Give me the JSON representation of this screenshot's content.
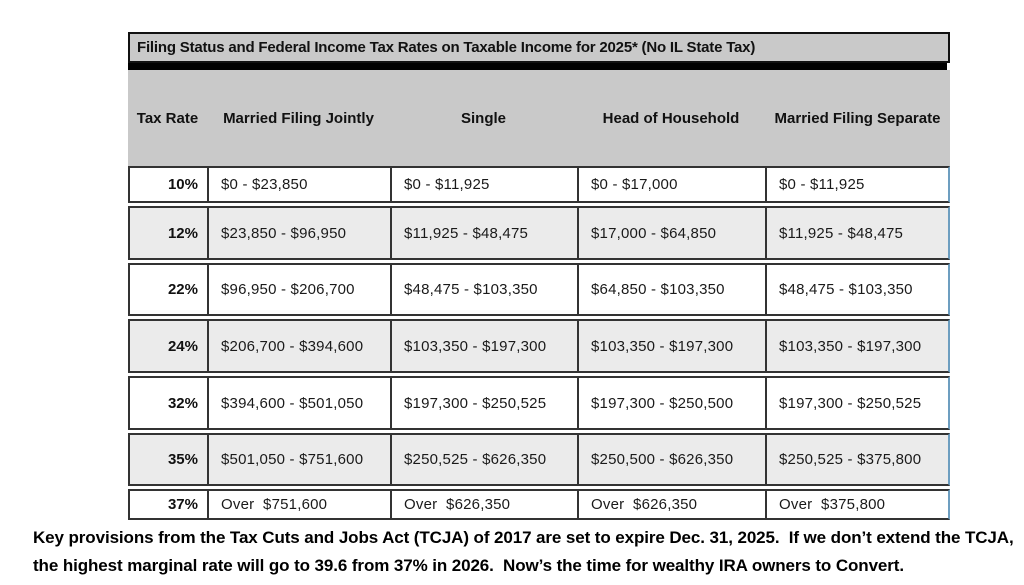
{
  "title": "Filing Status and Federal Income Tax Rates on Taxable Income for 2025* (No IL State Tax)",
  "chart_data": {
    "type": "table",
    "title": "Filing Status and Federal Income Tax Rates on Taxable Income for 2025* (No IL State Tax)",
    "columns": [
      "Tax Rate",
      "Married Filing Jointly",
      "Single",
      "Head of Household",
      "Married Filing Separate"
    ],
    "rows": [
      {
        "rate": "10%",
        "values": [
          "$0 - $23,850",
          "$0 - $11,925",
          "$0 - $17,000",
          "$0 - $11,925"
        ]
      },
      {
        "rate": "12%",
        "values": [
          "$23,850 - $96,950",
          "$11,925 - $48,475",
          "$17,000 - $64,850",
          "$11,925 - $48,475"
        ]
      },
      {
        "rate": "22%",
        "values": [
          "$96,950 - $206,700",
          "$48,475 - $103,350",
          "$64,850 - $103,350",
          "$48,475 - $103,350"
        ]
      },
      {
        "rate": "24%",
        "values": [
          "$206,700 - $394,600",
          "$103,350 - $197,300",
          "$103,350 - $197,300",
          "$103,350 - $197,300"
        ]
      },
      {
        "rate": "32%",
        "values": [
          "$394,600 - $501,050",
          "$197,300 - $250,525",
          "$197,300 - $250,500",
          "$197,300 - $250,525"
        ]
      },
      {
        "rate": "35%",
        "values": [
          "$501,050 - $751,600",
          "$250,525 - $626,350",
          "$250,500 - $626,350",
          "$250,525 - $375,800"
        ]
      },
      {
        "rate": "37%",
        "values": [
          "Over  $751,600",
          "Over  $626,350",
          "Over  $626,350",
          "Over  $375,800"
        ]
      }
    ]
  },
  "footnote": "Key provisions from the Tax Cuts and Jobs Act (TCJA) of 2017 are set to expire Dec. 31, 2025.  If we don’t extend the TCJA, the highest marginal rate will go to 39.6 from 37% in 2026.  Now’s the time for wealthy IRA owners to Convert.",
  "colors": {
    "header_bg": "#c9c9c9",
    "row_alt_bg": "#ebebeb",
    "border": "#333333",
    "accent_edge": "#6d9ec0"
  }
}
